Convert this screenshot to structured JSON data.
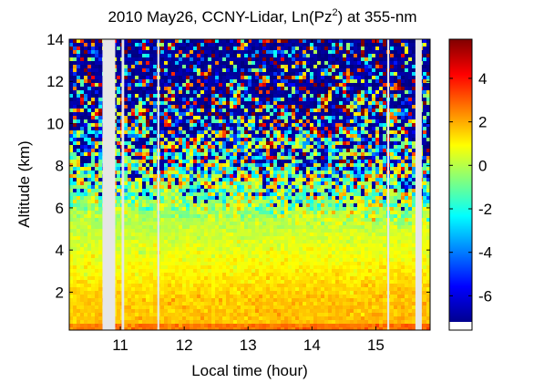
{
  "chart_data": {
    "type": "heatmap",
    "title_main": "2010 May26, CCNY-Lidar, Ln(Pz",
    "title_sup": "2",
    "title_end": ") at 355-nm",
    "xlabel": "Local time (hour)",
    "ylabel": "Altitude (km)",
    "xlim": [
      10.2,
      15.85
    ],
    "ylim": [
      0.2,
      14
    ],
    "x_ticks": [
      11,
      12,
      13,
      14,
      15
    ],
    "y_ticks": [
      2,
      4,
      6,
      8,
      10,
      12,
      14
    ],
    "colorbar": {
      "range": [
        -7.2,
        5.8
      ],
      "ticks": [
        4,
        2,
        0,
        -2,
        -4,
        -6
      ]
    },
    "data_gaps_hours": [
      [
        10.72,
        10.92
      ],
      [
        11.02,
        11.06
      ],
      [
        11.58,
        11.61
      ],
      [
        15.18,
        15.21
      ],
      [
        15.62,
        15.72
      ]
    ],
    "features": {
      "surface_layer_top_km": 1.8,
      "noise_onset_km": 5.5,
      "cloud_patches": [
        {
          "time": 14.2,
          "altitude": 11.15,
          "value": 4.2
        },
        {
          "time": 14.75,
          "altitude": 11.15,
          "value": 3.8
        },
        {
          "time": 15.25,
          "altitude": 10.3,
          "value": 3
        }
      ]
    }
  }
}
